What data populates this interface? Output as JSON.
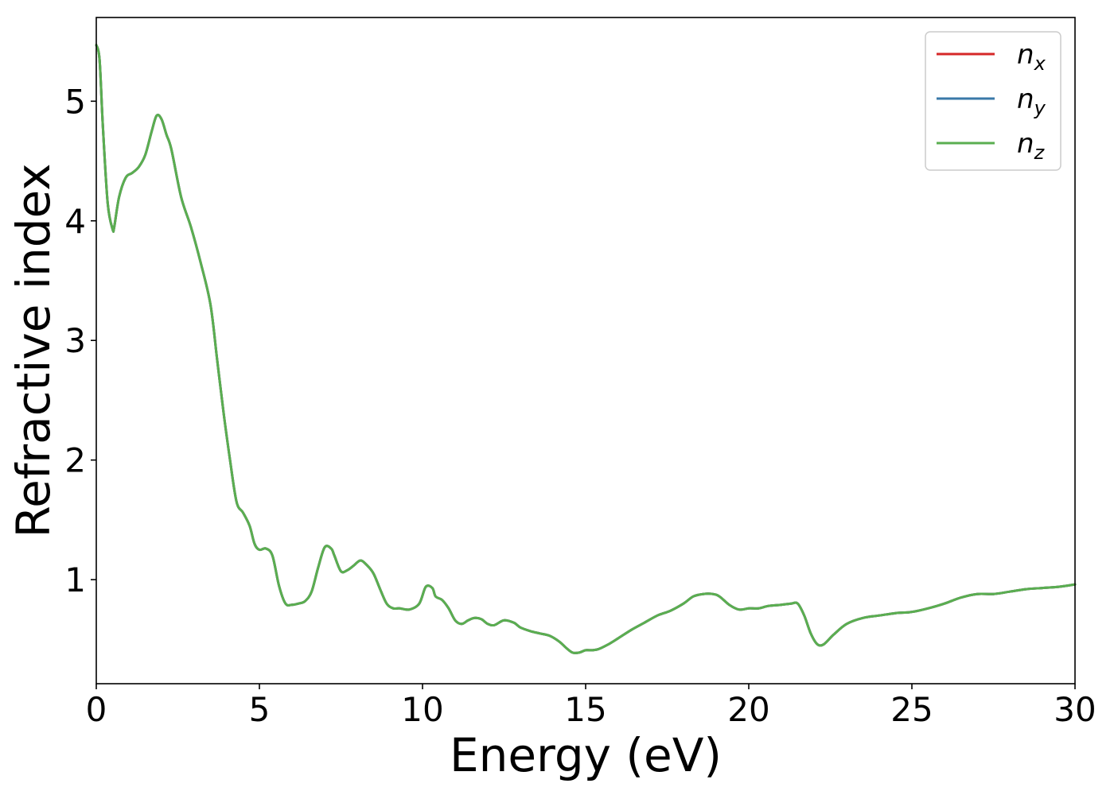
{
  "chart_data": {
    "type": "line",
    "xlabel": "Energy (eV)",
    "ylabel": "Refractive index",
    "xlim": [
      0,
      30
    ],
    "ylim": [
      0.13,
      5.7
    ],
    "xticks": [
      0,
      5,
      10,
      15,
      20,
      25,
      30
    ],
    "xtick_labels": [
      "0",
      "5",
      "10",
      "15",
      "20",
      "25",
      "30"
    ],
    "yticks": [
      1,
      2,
      3,
      4,
      5
    ],
    "ytick_labels": [
      "1",
      "2",
      "3",
      "4",
      "5"
    ],
    "grid": false,
    "legend_position": "top-right",
    "series": [
      {
        "name": "n",
        "subscript": "x",
        "color": "#d62728"
      },
      {
        "name": "n",
        "subscript": "y",
        "color": "#3a79a8"
      },
      {
        "name": "n",
        "subscript": "z",
        "color": "#5aae50"
      }
    ],
    "x": [
      0,
      0.1,
      0.2,
      0.35,
      0.5,
      0.55,
      0.7,
      0.9,
      1.1,
      1.3,
      1.5,
      1.7,
      1.85,
      2.0,
      2.15,
      2.3,
      2.6,
      2.9,
      3.2,
      3.5,
      3.7,
      3.9,
      4.1,
      4.3,
      4.5,
      4.7,
      4.85,
      5.0,
      5.2,
      5.4,
      5.6,
      5.8,
      6.0,
      6.2,
      6.4,
      6.6,
      6.8,
      7.0,
      7.2,
      7.3,
      7.5,
      7.7,
      7.9,
      8.1,
      8.3,
      8.5,
      8.7,
      8.9,
      9.1,
      9.3,
      9.6,
      9.9,
      10.1,
      10.3,
      10.4,
      10.6,
      10.8,
      11.0,
      11.2,
      11.4,
      11.6,
      11.8,
      12.0,
      12.2,
      12.5,
      12.8,
      13.0,
      13.3,
      13.6,
      13.9,
      14.2,
      14.4,
      14.6,
      14.8,
      15.0,
      15.2,
      15.4,
      15.7,
      16.0,
      16.4,
      16.8,
      17.2,
      17.6,
      18.0,
      18.3,
      18.6,
      18.9,
      19.1,
      19.4,
      19.7,
      20.0,
      20.3,
      20.6,
      21.0,
      21.3,
      21.5,
      21.7,
      21.9,
      22.1,
      22.3,
      22.6,
      23.0,
      23.5,
      24.0,
      24.5,
      25.0,
      25.5,
      26.0,
      26.5,
      27.0,
      27.5,
      28.0,
      28.5,
      29.0,
      29.5,
      30.0
    ],
    "values": [
      5.47,
      5.35,
      4.8,
      4.15,
      3.93,
      3.95,
      4.2,
      4.36,
      4.4,
      4.45,
      4.55,
      4.75,
      4.88,
      4.85,
      4.72,
      4.6,
      4.2,
      3.95,
      3.65,
      3.3,
      2.85,
      2.4,
      2.0,
      1.65,
      1.56,
      1.45,
      1.3,
      1.25,
      1.26,
      1.2,
      0.95,
      0.8,
      0.79,
      0.8,
      0.82,
      0.9,
      1.1,
      1.27,
      1.26,
      1.2,
      1.07,
      1.08,
      1.12,
      1.16,
      1.12,
      1.05,
      0.92,
      0.8,
      0.76,
      0.76,
      0.75,
      0.8,
      0.94,
      0.93,
      0.86,
      0.83,
      0.76,
      0.66,
      0.63,
      0.66,
      0.68,
      0.67,
      0.63,
      0.62,
      0.66,
      0.64,
      0.6,
      0.57,
      0.55,
      0.53,
      0.48,
      0.43,
      0.39,
      0.39,
      0.41,
      0.41,
      0.42,
      0.46,
      0.51,
      0.58,
      0.64,
      0.7,
      0.74,
      0.8,
      0.86,
      0.88,
      0.88,
      0.86,
      0.79,
      0.75,
      0.76,
      0.76,
      0.78,
      0.79,
      0.8,
      0.8,
      0.7,
      0.55,
      0.46,
      0.46,
      0.54,
      0.63,
      0.68,
      0.7,
      0.72,
      0.73,
      0.76,
      0.8,
      0.85,
      0.88,
      0.88,
      0.9,
      0.92,
      0.93,
      0.94,
      0.96
    ]
  }
}
